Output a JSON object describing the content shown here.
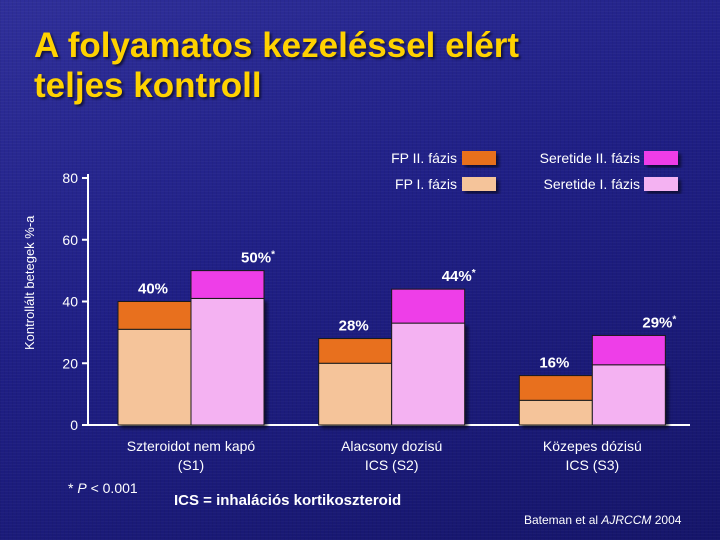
{
  "slide": {
    "title_line1": "A folyamatos kezeléssel elért",
    "title_line2": "teljes kontroll",
    "footnote_prefix": "* ",
    "footnote_p": "P",
    "footnote_rest": " < 0.001",
    "ics_note": "ICS = inhalációs kortikoszteroid",
    "citation_author": "Bateman et al ",
    "citation_journal": "AJRCCM",
    "citation_year": " 2004"
  },
  "chart_data": {
    "type": "bar",
    "ylabel": "Kontrollált betegek %-a",
    "ylim": [
      0,
      80
    ],
    "yticks": [
      0,
      20,
      40,
      60,
      80
    ],
    "categories": [
      {
        "line1": "Szteroidot nem kapó",
        "line2": "(S1)"
      },
      {
        "line1": "Alacsony dozisú",
        "line2": "ICS (S2)"
      },
      {
        "line1": "Közepes dózisú",
        "line2": "ICS (S3)"
      }
    ],
    "series": [
      {
        "name": "FP",
        "phase1_values": [
          31,
          20,
          8
        ],
        "totals": [
          40,
          28,
          16
        ],
        "labels": [
          "40%",
          "28%",
          "16%"
        ],
        "significant": [
          false,
          false,
          false
        ]
      },
      {
        "name": "Seretide",
        "phase1_values": [
          41,
          33,
          19.5
        ],
        "totals": [
          50,
          44,
          29
        ],
        "labels": [
          "50%",
          "44%",
          "29%"
        ],
        "significant": [
          true,
          true,
          true
        ]
      }
    ],
    "legend": [
      {
        "label": "FP II. fázis",
        "color": "#e8701e"
      },
      {
        "label": "Seretide II. fázis",
        "color": "#ee3ee8"
      },
      {
        "label": "FP I. fázis",
        "color": "#f5c49a"
      },
      {
        "label": "Seretide I. fázis",
        "color": "#f4b2f2"
      }
    ],
    "colors": {
      "fp_phase2": "#e8701e",
      "fp_phase1": "#f5c49a",
      "seretide_phase2": "#ee3ee8",
      "seretide_phase1": "#f4b2f2",
      "axis": "#ffffff"
    },
    "legend_position": "top-right"
  }
}
